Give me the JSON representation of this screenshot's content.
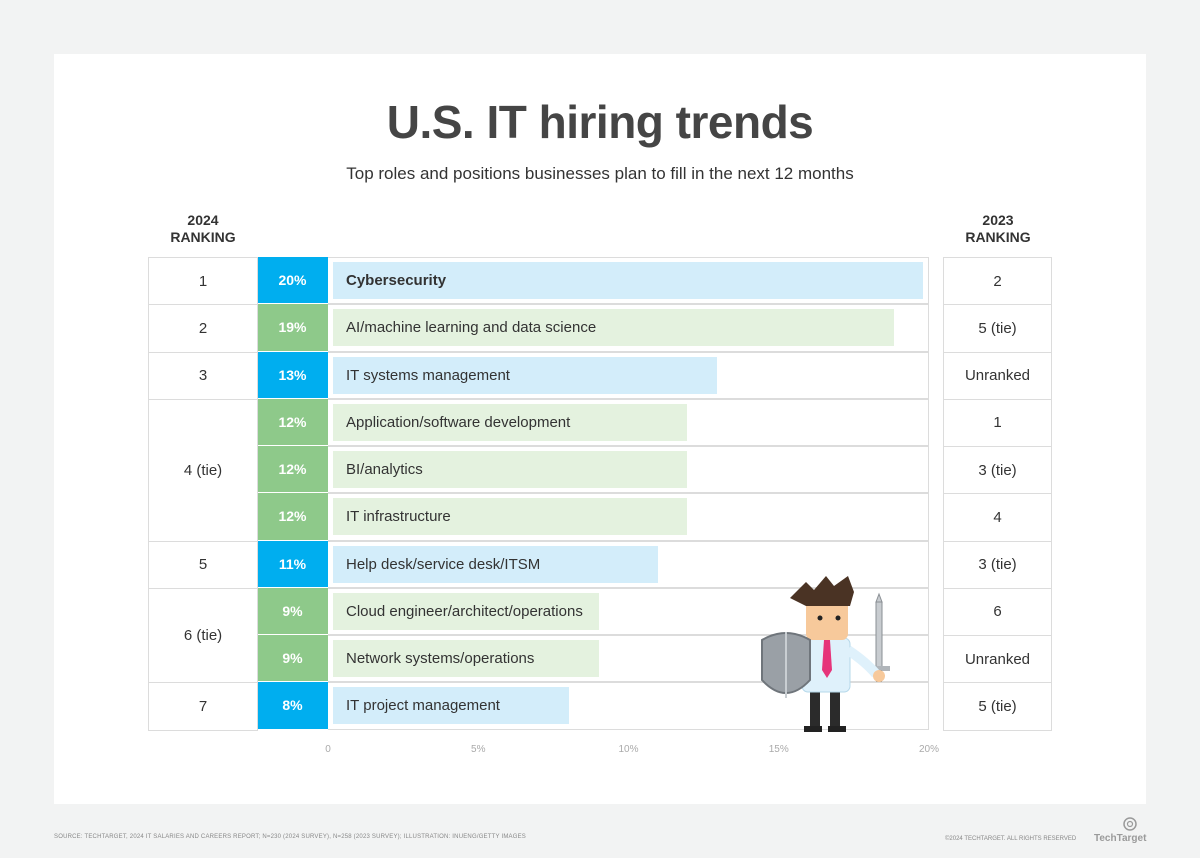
{
  "title": "U.S. IT hiring trends",
  "subtitle": "Top roles and positions businesses plan to fill in the next 12 months",
  "headers": {
    "left_line1": "2024",
    "left_line2": "RANKING",
    "right_line1": "2023",
    "right_line2": "RANKING"
  },
  "colors": {
    "cyan_label": "#00aeef",
    "green_label": "#8ec98a",
    "cyan_bar": "#d3edfa",
    "green_bar": "#e4f2df"
  },
  "chart_data": {
    "type": "bar",
    "title": "U.S. IT hiring trends",
    "subtitle": "Top roles and positions businesses plan to fill in the next 12 months",
    "orientation": "horizontal",
    "xlim": [
      0,
      20
    ],
    "ticks": [
      "0",
      "5%",
      "10%",
      "15%",
      "20%"
    ],
    "categories": [
      "Cybersecurity",
      "AI/machine learning and data science",
      "IT systems management",
      "Application/software development",
      "BI/analytics",
      "IT infrastructure",
      "Help desk/service desk/ITSM",
      "Cloud engineer/architect/operations",
      "Network systems/operations",
      "IT project management"
    ],
    "values": [
      20,
      19,
      13,
      12,
      12,
      12,
      11,
      9,
      9,
      8
    ],
    "value_labels": [
      "20%",
      "19%",
      "13%",
      "12%",
      "12%",
      "12%",
      "11%",
      "9%",
      "9%",
      "8%"
    ],
    "color_group": [
      "cyan",
      "green",
      "cyan",
      "green",
      "green",
      "green",
      "cyan",
      "green",
      "green",
      "cyan"
    ],
    "ranking_2024_groups": [
      {
        "label": "1",
        "rows": 1
      },
      {
        "label": "2",
        "rows": 1
      },
      {
        "label": "3",
        "rows": 1
      },
      {
        "label": "4 (tie)",
        "rows": 3
      },
      {
        "label": "5",
        "rows": 1
      },
      {
        "label": "6 (tie)",
        "rows": 2
      },
      {
        "label": "7",
        "rows": 1
      }
    ],
    "ranking_2023": [
      "2",
      "5 (tie)",
      "Unranked",
      "1",
      "3 (tie)",
      "4",
      "3 (tie)",
      "6",
      "Unranked",
      "5 (tie)"
    ]
  },
  "footer": {
    "source": "SOURCE: TECHTARGET, 2024 IT SALARIES AND CAREERS REPORT; N=230 (2024 SURVEY), N=258 (2023 SURVEY); ILLUSTRATION: INUENG/GETTY IMAGES",
    "copyright": "©2024 TECHTARGET. ALL RIGHTS RESERVED",
    "brand": "TechTarget"
  }
}
